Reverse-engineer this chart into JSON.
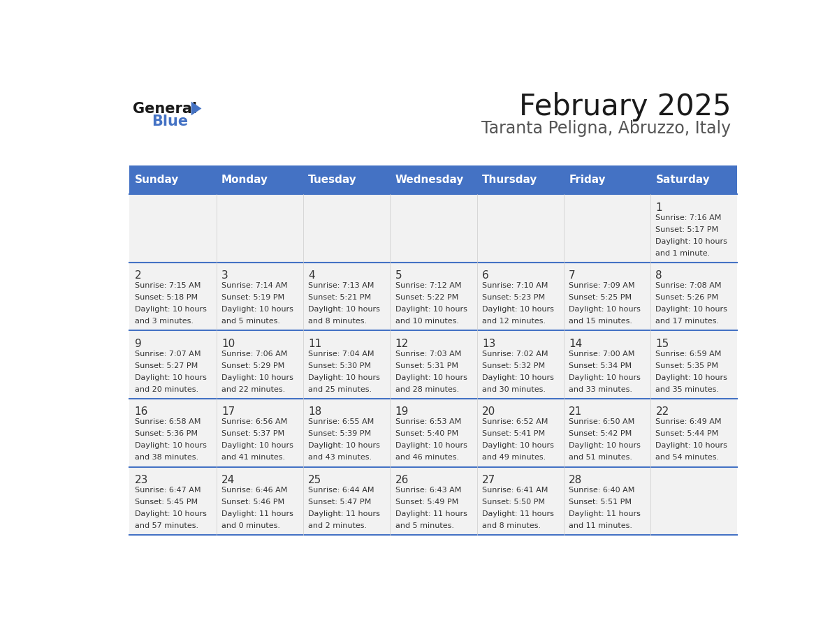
{
  "title": "February 2025",
  "subtitle": "Taranta Peligna, Abruzzo, Italy",
  "header_bg": "#4472C4",
  "header_text": "#FFFFFF",
  "header_days": [
    "Sunday",
    "Monday",
    "Tuesday",
    "Wednesday",
    "Thursday",
    "Friday",
    "Saturday"
  ],
  "row_bg": "#F2F2F2",
  "cell_border": "#4472C4",
  "day_number_color": "#333333",
  "info_text_color": "#333333",
  "general_blue_color": "#4472C4",
  "calendar_data": [
    [
      {
        "day": null,
        "info": ""
      },
      {
        "day": null,
        "info": ""
      },
      {
        "day": null,
        "info": ""
      },
      {
        "day": null,
        "info": ""
      },
      {
        "day": null,
        "info": ""
      },
      {
        "day": null,
        "info": ""
      },
      {
        "day": 1,
        "info": "Sunrise: 7:16 AM\nSunset: 5:17 PM\nDaylight: 10 hours\nand 1 minute."
      }
    ],
    [
      {
        "day": 2,
        "info": "Sunrise: 7:15 AM\nSunset: 5:18 PM\nDaylight: 10 hours\nand 3 minutes."
      },
      {
        "day": 3,
        "info": "Sunrise: 7:14 AM\nSunset: 5:19 PM\nDaylight: 10 hours\nand 5 minutes."
      },
      {
        "day": 4,
        "info": "Sunrise: 7:13 AM\nSunset: 5:21 PM\nDaylight: 10 hours\nand 8 minutes."
      },
      {
        "day": 5,
        "info": "Sunrise: 7:12 AM\nSunset: 5:22 PM\nDaylight: 10 hours\nand 10 minutes."
      },
      {
        "day": 6,
        "info": "Sunrise: 7:10 AM\nSunset: 5:23 PM\nDaylight: 10 hours\nand 12 minutes."
      },
      {
        "day": 7,
        "info": "Sunrise: 7:09 AM\nSunset: 5:25 PM\nDaylight: 10 hours\nand 15 minutes."
      },
      {
        "day": 8,
        "info": "Sunrise: 7:08 AM\nSunset: 5:26 PM\nDaylight: 10 hours\nand 17 minutes."
      }
    ],
    [
      {
        "day": 9,
        "info": "Sunrise: 7:07 AM\nSunset: 5:27 PM\nDaylight: 10 hours\nand 20 minutes."
      },
      {
        "day": 10,
        "info": "Sunrise: 7:06 AM\nSunset: 5:29 PM\nDaylight: 10 hours\nand 22 minutes."
      },
      {
        "day": 11,
        "info": "Sunrise: 7:04 AM\nSunset: 5:30 PM\nDaylight: 10 hours\nand 25 minutes."
      },
      {
        "day": 12,
        "info": "Sunrise: 7:03 AM\nSunset: 5:31 PM\nDaylight: 10 hours\nand 28 minutes."
      },
      {
        "day": 13,
        "info": "Sunrise: 7:02 AM\nSunset: 5:32 PM\nDaylight: 10 hours\nand 30 minutes."
      },
      {
        "day": 14,
        "info": "Sunrise: 7:00 AM\nSunset: 5:34 PM\nDaylight: 10 hours\nand 33 minutes."
      },
      {
        "day": 15,
        "info": "Sunrise: 6:59 AM\nSunset: 5:35 PM\nDaylight: 10 hours\nand 35 minutes."
      }
    ],
    [
      {
        "day": 16,
        "info": "Sunrise: 6:58 AM\nSunset: 5:36 PM\nDaylight: 10 hours\nand 38 minutes."
      },
      {
        "day": 17,
        "info": "Sunrise: 6:56 AM\nSunset: 5:37 PM\nDaylight: 10 hours\nand 41 minutes."
      },
      {
        "day": 18,
        "info": "Sunrise: 6:55 AM\nSunset: 5:39 PM\nDaylight: 10 hours\nand 43 minutes."
      },
      {
        "day": 19,
        "info": "Sunrise: 6:53 AM\nSunset: 5:40 PM\nDaylight: 10 hours\nand 46 minutes."
      },
      {
        "day": 20,
        "info": "Sunrise: 6:52 AM\nSunset: 5:41 PM\nDaylight: 10 hours\nand 49 minutes."
      },
      {
        "day": 21,
        "info": "Sunrise: 6:50 AM\nSunset: 5:42 PM\nDaylight: 10 hours\nand 51 minutes."
      },
      {
        "day": 22,
        "info": "Sunrise: 6:49 AM\nSunset: 5:44 PM\nDaylight: 10 hours\nand 54 minutes."
      }
    ],
    [
      {
        "day": 23,
        "info": "Sunrise: 6:47 AM\nSunset: 5:45 PM\nDaylight: 10 hours\nand 57 minutes."
      },
      {
        "day": 24,
        "info": "Sunrise: 6:46 AM\nSunset: 5:46 PM\nDaylight: 11 hours\nand 0 minutes."
      },
      {
        "day": 25,
        "info": "Sunrise: 6:44 AM\nSunset: 5:47 PM\nDaylight: 11 hours\nand 2 minutes."
      },
      {
        "day": 26,
        "info": "Sunrise: 6:43 AM\nSunset: 5:49 PM\nDaylight: 11 hours\nand 5 minutes."
      },
      {
        "day": 27,
        "info": "Sunrise: 6:41 AM\nSunset: 5:50 PM\nDaylight: 11 hours\nand 8 minutes."
      },
      {
        "day": 28,
        "info": "Sunrise: 6:40 AM\nSunset: 5:51 PM\nDaylight: 11 hours\nand 11 minutes."
      },
      {
        "day": null,
        "info": ""
      }
    ]
  ]
}
